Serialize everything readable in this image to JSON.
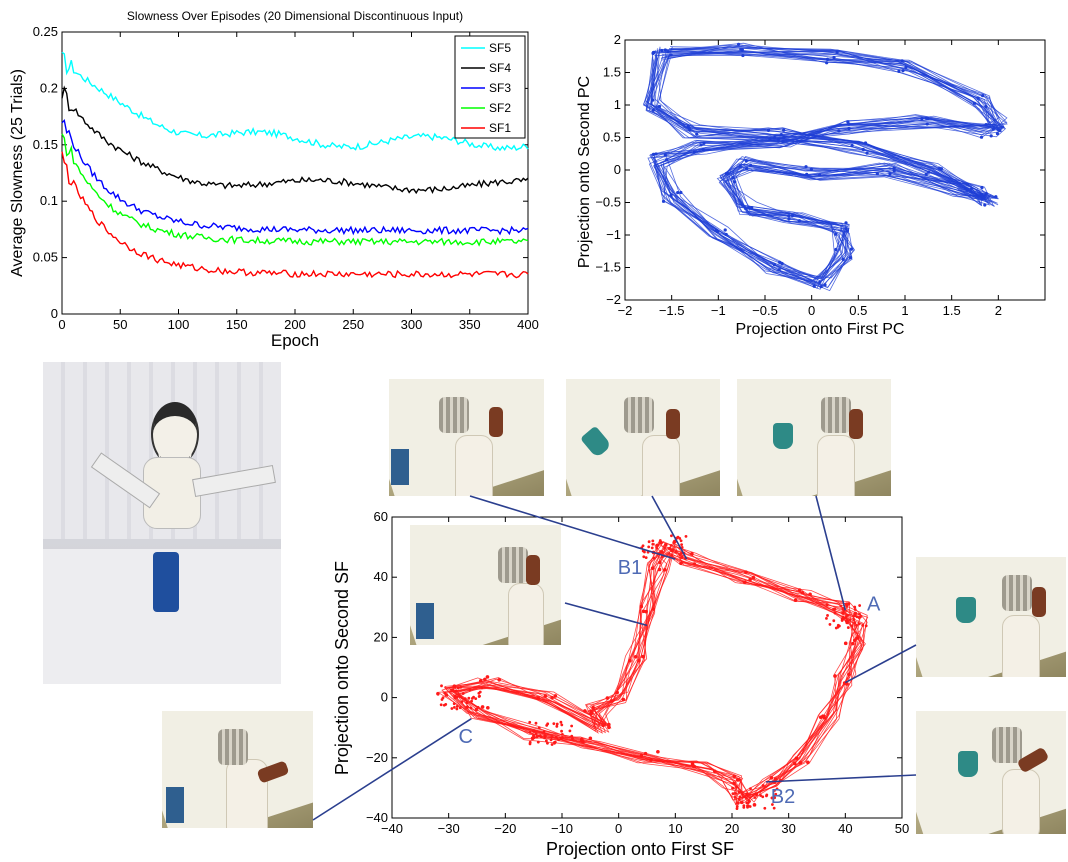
{
  "chart_data": [
    {
      "type": "line",
      "title": "Slowness Over Episodes (20 Dimensional Discontinuous Input)",
      "xlabel": "Epoch",
      "ylabel": "Average Slowness (25 Trials)",
      "xlim": [
        0,
        400
      ],
      "ylim": [
        0,
        0.25
      ],
      "xticks": [
        "0",
        "50",
        "100",
        "150",
        "200",
        "250",
        "300",
        "350",
        "400"
      ],
      "yticks": [
        "0",
        "0.05",
        "0.1",
        "0.15",
        "0.2",
        "0.25"
      ],
      "legend": "top-right",
      "series": [
        {
          "name": "SF5",
          "color": "#00ffff",
          "start": 0.225,
          "end": 0.152,
          "tau": 60
        },
        {
          "name": "SF4",
          "color": "#000000",
          "start": 0.198,
          "end": 0.114,
          "tau": 45
        },
        {
          "name": "SF3",
          "color": "#0000ff",
          "start": 0.172,
          "end": 0.074,
          "tau": 40
        },
        {
          "name": "SF2",
          "color": "#00ff00",
          "start": 0.158,
          "end": 0.064,
          "tau": 38
        },
        {
          "name": "SF1",
          "color": "#ff0000",
          "start": 0.138,
          "end": 0.035,
          "tau": 40
        }
      ]
    },
    {
      "type": "scatter",
      "title": "",
      "xlabel": "Projection onto First PC",
      "ylabel": "Projection onto Second PC",
      "xlim": [
        -2,
        2.5
      ],
      "ylim": [
        -2,
        2
      ],
      "xticks": [
        "−2",
        "−1.5",
        "−1",
        "−0.5",
        "0",
        "0.5",
        "1",
        "1.5",
        "2"
      ],
      "yticks": [
        "−2",
        "−1.5",
        "−1",
        "−0.5",
        "0",
        "0.5",
        "1",
        "1.5",
        "2"
      ],
      "color": "#1f3fd6",
      "loop": [
        [
          -1.6,
          1.8
        ],
        [
          -0.8,
          1.85
        ],
        [
          0.2,
          1.75
        ],
        [
          1.0,
          1.6
        ],
        [
          1.8,
          1.05
        ],
        [
          2.0,
          0.7
        ],
        [
          1.9,
          0.6
        ],
        [
          1.2,
          0.75
        ],
        [
          0.3,
          0.65
        ],
        [
          -0.3,
          0.45
        ],
        [
          -1.2,
          0.35
        ],
        [
          -1.65,
          0.15
        ],
        [
          -1.5,
          -0.4
        ],
        [
          -1.0,
          -0.95
        ],
        [
          -0.4,
          -1.5
        ],
        [
          0.1,
          -1.75
        ],
        [
          0.35,
          -1.3
        ],
        [
          0.3,
          -0.9
        ],
        [
          -0.2,
          -0.75
        ],
        [
          -0.7,
          -0.6
        ],
        [
          -0.9,
          -0.1
        ],
        [
          -0.7,
          0.1
        ],
        [
          0.0,
          -0.05
        ],
        [
          0.8,
          0.0
        ],
        [
          1.6,
          -0.3
        ],
        [
          1.9,
          -0.45
        ],
        [
          1.8,
          -0.35
        ],
        [
          1.3,
          0.0
        ],
        [
          0.5,
          0.35
        ],
        [
          -0.4,
          0.55
        ],
        [
          -1.3,
          0.6
        ],
        [
          -1.7,
          1.0
        ],
        [
          -1.6,
          1.8
        ]
      ]
    },
    {
      "type": "scatter",
      "title": "",
      "xlabel": "Projection onto First SF",
      "ylabel": "Projection onto Second SF",
      "xlim": [
        -40,
        50
      ],
      "ylim": [
        -40,
        60
      ],
      "xticks": [
        "−40",
        "−30",
        "−20",
        "−10",
        "0",
        "10",
        "20",
        "30",
        "40",
        "50"
      ],
      "yticks": [
        "−40",
        "−20",
        "0",
        "20",
        "40",
        "60"
      ],
      "color": "#ff1a1a",
      "loop": [
        [
          8,
          50
        ],
        [
          12,
          46
        ],
        [
          22,
          40
        ],
        [
          32,
          34
        ],
        [
          39,
          30
        ],
        [
          42,
          26
        ],
        [
          42,
          18
        ],
        [
          40,
          6
        ],
        [
          37,
          -6
        ],
        [
          32,
          -20
        ],
        [
          27,
          -28
        ],
        [
          22,
          -34
        ],
        [
          20,
          -28
        ],
        [
          15,
          -23
        ],
        [
          5,
          -20
        ],
        [
          -5,
          -15
        ],
        [
          -15,
          -12
        ],
        [
          -25,
          -5
        ],
        [
          -30,
          2
        ],
        [
          -23,
          5
        ],
        [
          -13,
          0
        ],
        [
          -3,
          -10
        ],
        [
          -4,
          -4
        ],
        [
          0,
          0
        ],
        [
          3,
          12
        ],
        [
          5,
          30
        ],
        [
          7,
          43
        ],
        [
          8,
          50
        ]
      ],
      "annotations": [
        {
          "text": "B1",
          "x": 2,
          "y": 41
        },
        {
          "text": "A",
          "x": 45,
          "y": 29
        },
        {
          "text": "C",
          "x": -27,
          "y": -15
        },
        {
          "text": "B2",
          "x": 29,
          "y": -35
        }
      ]
    }
  ]
}
